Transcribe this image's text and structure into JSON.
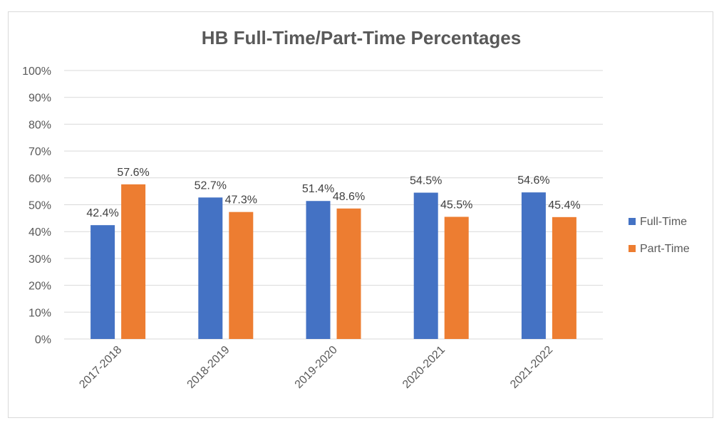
{
  "chart_data": {
    "type": "bar",
    "title": "HB Full-Time/Part-Time Percentages",
    "categories": [
      "2017-2018",
      "2018-2019",
      "2019-2020",
      "2020-2021",
      "2021-2022"
    ],
    "series": [
      {
        "name": "Full-Time",
        "color": "#4472C4",
        "values": [
          42.4,
          52.7,
          51.4,
          54.5,
          54.6
        ],
        "labels": [
          "42.4%",
          "52.7%",
          "51.4%",
          "54.5%",
          "54.6%"
        ]
      },
      {
        "name": "Part-Time",
        "color": "#ED7D31",
        "values": [
          57.6,
          47.3,
          48.6,
          45.5,
          45.4
        ],
        "labels": [
          "57.6%",
          "47.3%",
          "48.6%",
          "45.5%",
          "45.4%"
        ]
      }
    ],
    "y_ticks": [
      "0%",
      "10%",
      "20%",
      "30%",
      "40%",
      "50%",
      "60%",
      "70%",
      "80%",
      "90%",
      "100%"
    ],
    "ylim": [
      0,
      100
    ],
    "grid": true,
    "legend_position": "right"
  }
}
